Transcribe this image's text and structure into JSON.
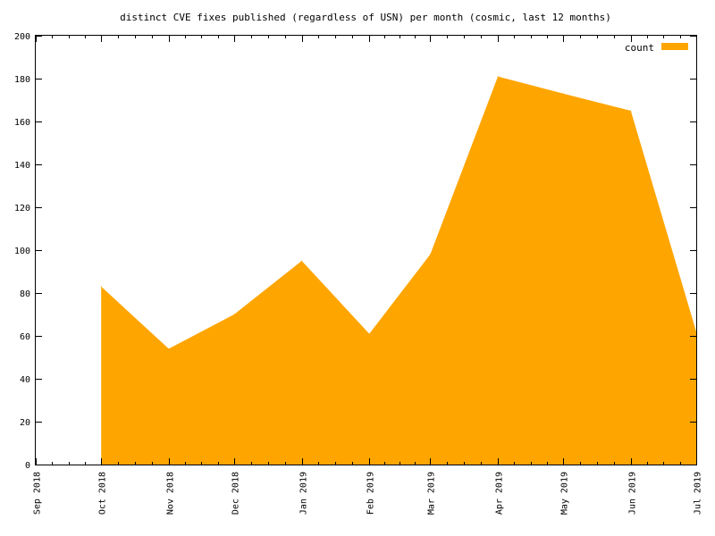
{
  "chart_data": {
    "type": "area",
    "title": "distinct CVE fixes published (regardless of USN) per month (cosmic, last 12 months)",
    "xlabel": "",
    "ylabel": "",
    "x_ticks": [
      "Sep 2018",
      "Oct 2018",
      "Nov 2018",
      "Dec 2018",
      "Jan 2019",
      "Feb 2019",
      "Mar 2019",
      "Apr 2019",
      "May 2019",
      "Jun 2019",
      "Jul 2019"
    ],
    "y_ticks": [
      "0",
      "20",
      "40",
      "60",
      "80",
      "100",
      "120",
      "140",
      "160",
      "180",
      "200"
    ],
    "ylim": [
      0,
      200
    ],
    "xlim": [
      "2018-09-01",
      "2019-07-01"
    ],
    "grid": false,
    "legend_position": "top-right",
    "fill_color": "#ffa500",
    "series": [
      {
        "name": "count",
        "x": [
          "2018-10-01",
          "2018-11-01",
          "2018-12-01",
          "2019-01-01",
          "2019-02-01",
          "2019-03-01",
          "2019-04-01",
          "2019-05-01",
          "2019-06-01",
          "2019-07-01"
        ],
        "values": [
          83,
          54,
          70,
          95,
          61,
          98,
          181,
          173,
          165,
          62
        ]
      }
    ]
  }
}
